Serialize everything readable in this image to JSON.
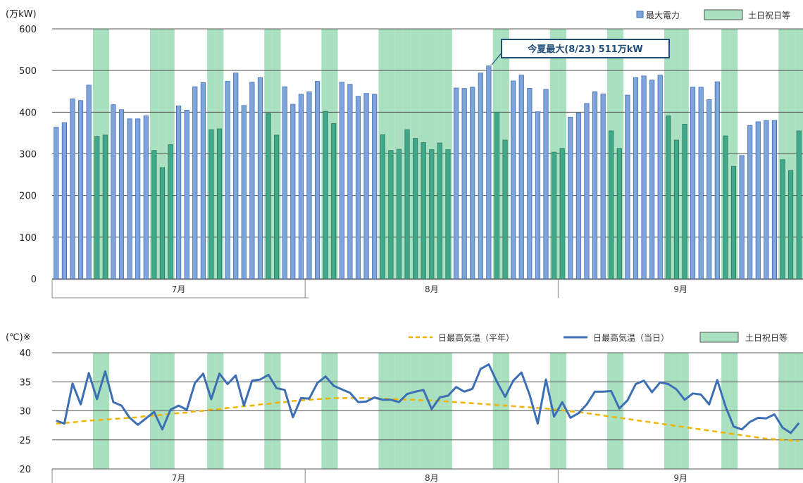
{
  "chart_data": [
    {
      "type": "bar",
      "ylabel": "(万kW)",
      "ylim": [
        0,
        600
      ],
      "yticks": [
        "0",
        "100",
        "200",
        "300",
        "400",
        "500",
        "600"
      ],
      "months": [
        "7月",
        "8月",
        "9月"
      ],
      "series": [
        {
          "name": "最大電力",
          "color": "#7fa4dc",
          "values": [
            364,
            375,
            432,
            428,
            465,
            342,
            345,
            418,
            406,
            384,
            384,
            391,
            308,
            267,
            322,
            415,
            405,
            461,
            471,
            358,
            360,
            474,
            494,
            416,
            472,
            483,
            397,
            345,
            461,
            419,
            443,
            449,
            474,
            402,
            373,
            472,
            467,
            438,
            445,
            443,
            346,
            308,
            311,
            358,
            337,
            327,
            310,
            326,
            310,
            458,
            457,
            460,
            494,
            511,
            400,
            333,
            475,
            489,
            457,
            401,
            455,
            304,
            313,
            388,
            398,
            421,
            449,
            444,
            355,
            313,
            441,
            483,
            487,
            477,
            489,
            391,
            333,
            371,
            460,
            460,
            430,
            473,
            343,
            270,
            296,
            368,
            377,
            380,
            380,
            286,
            260,
            355
          ]
        }
      ],
      "holidays_legend": "土日祝日等",
      "annotation": "今夏最大(8/23) 511万kW"
    },
    {
      "type": "line",
      "ylabel": "(℃)※",
      "ylim": [
        20,
        40
      ],
      "yticks": [
        "20",
        "25",
        "30",
        "35",
        "40"
      ],
      "months": [
        "7月",
        "8月",
        "9月"
      ],
      "series": [
        {
          "name": "日最高気温（当日）",
          "color": "#3d6fb5",
          "values": [
            28.3,
            27.8,
            34.7,
            31.1,
            36.5,
            32.0,
            36.8,
            31.5,
            30.9,
            28.8,
            27.6,
            28.7,
            29.8,
            26.8,
            30.2,
            30.9,
            30.2,
            34.8,
            36.4,
            32.0,
            36.4,
            34.6,
            36.1,
            30.9,
            35.2,
            35.4,
            36.2,
            33.9,
            33.6,
            28.9,
            32.2,
            32.1,
            34.8,
            35.9,
            34.3,
            33.7,
            33.1,
            31.5,
            31.6,
            32.3,
            31.9,
            31.9,
            31.5,
            32.9,
            33.3,
            33.6,
            30.3,
            32.3,
            32.6,
            34.1,
            33.3,
            33.8,
            37.2,
            38.0,
            35.0,
            32.4,
            35.2,
            36.6,
            32.8,
            27.8,
            35.4,
            29.0,
            31.5,
            28.8,
            29.6,
            31.1,
            33.3,
            33.3,
            33.4,
            30.4,
            31.8,
            34.6,
            35.2,
            33.2,
            34.9,
            34.6,
            33.7,
            31.9,
            33.0,
            32.8,
            31.1,
            35.3,
            30.8,
            27.3,
            26.8,
            28.1,
            28.8,
            28.7,
            29.4,
            27.1,
            26.2,
            27.9
          ]
        },
        {
          "name": "日最高気温（平年）",
          "color": "#f0b400",
          "values": [
            27.8,
            27.9,
            28.0,
            28.2,
            28.3,
            28.4,
            28.5,
            28.6,
            28.7,
            28.8,
            28.9,
            29.1,
            29.2,
            29.3,
            29.5,
            29.6,
            29.7,
            29.9,
            30.0,
            30.2,
            30.3,
            30.5,
            30.6,
            30.8,
            30.9,
            31.1,
            31.2,
            31.4,
            31.5,
            31.7,
            31.8,
            31.9,
            32.0,
            32.1,
            32.2,
            32.2,
            32.2,
            32.2,
            32.2,
            32.1,
            32.1,
            32.0,
            32.0,
            31.9,
            31.9,
            31.8,
            31.8,
            31.7,
            31.6,
            31.5,
            31.4,
            31.3,
            31.2,
            31.1,
            31.0,
            30.9,
            30.8,
            30.7,
            30.6,
            30.5,
            30.4,
            30.2,
            30.1,
            29.9,
            29.8,
            29.6,
            29.4,
            29.2,
            29.0,
            28.8,
            28.6,
            28.4,
            28.2,
            28.0,
            27.8,
            27.6,
            27.4,
            27.2,
            27.0,
            26.8,
            26.6,
            26.4,
            26.2,
            26.0,
            25.8,
            25.6,
            25.4,
            25.2,
            25.1,
            25.0,
            24.9,
            24.8
          ]
        }
      ],
      "holidays_legend": "土日祝日等"
    }
  ],
  "holiday_days": [
    5,
    6,
    12,
    13,
    14,
    19,
    20,
    26,
    27,
    33,
    34,
    40,
    41,
    42,
    43,
    44,
    45,
    46,
    47,
    48,
    54,
    55,
    61,
    62,
    68,
    69,
    75,
    76,
    77,
    82,
    83,
    89,
    90,
    91
  ],
  "colors": {
    "holiday": "#a8e0c0",
    "grid": "#555555",
    "annotation_border": "#1f4e79"
  }
}
